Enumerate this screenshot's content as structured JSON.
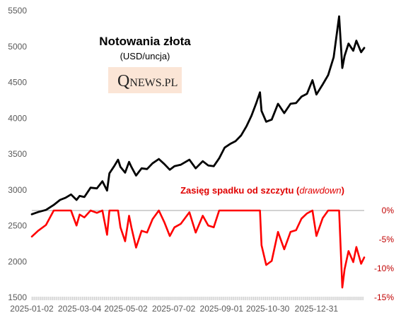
{
  "chart_data": {
    "type": "line",
    "title": "Notowania złota",
    "subtitle": "(USD/uncja)",
    "logo": "QNEWS.PL",
    "annotation": {
      "prefix": "Zasięg spadku od szczytu (",
      "emphasis": "drawdown",
      "suffix": ")"
    },
    "x_ticks": [
      "2025-01-02",
      "2025-03-04",
      "2025-05-02",
      "2025-07-02",
      "2025-09-01",
      "2025-10-30",
      "2025-12-31"
    ],
    "y_left": {
      "min": 1500,
      "max": 5500,
      "ticks": [
        "1500",
        "2000",
        "2500",
        "3000",
        "3500",
        "4000",
        "4500",
        "5000",
        "5500"
      ]
    },
    "y_right": {
      "min": -15,
      "max": 0,
      "ticks": [
        "0%",
        "-5%",
        "-10%",
        "-15%"
      ]
    },
    "colors": {
      "price": "#000000",
      "drawdown": "#ff0000",
      "zero_line": "#a6a6a6"
    },
    "series": [
      {
        "axis": "left",
        "points": [
          [
            "2025-01-02",
            2660
          ],
          [
            "2025-01-10",
            2690
          ],
          [
            "2025-01-20",
            2720
          ],
          [
            "2025-01-30",
            2790
          ],
          [
            "2025-02-07",
            2860
          ],
          [
            "2025-02-14",
            2890
          ],
          [
            "2025-02-21",
            2935
          ],
          [
            "2025-02-28",
            2860
          ],
          [
            "2025-03-04",
            2915
          ],
          [
            "2025-03-10",
            2900
          ],
          [
            "2025-03-18",
            3030
          ],
          [
            "2025-03-26",
            3020
          ],
          [
            "2025-04-02",
            3120
          ],
          [
            "2025-04-08",
            2990
          ],
          [
            "2025-04-11",
            3230
          ],
          [
            "2025-04-17",
            3330
          ],
          [
            "2025-04-22",
            3420
          ],
          [
            "2025-04-25",
            3320
          ],
          [
            "2025-05-01",
            3240
          ],
          [
            "2025-05-06",
            3390
          ],
          [
            "2025-05-09",
            3320
          ],
          [
            "2025-05-15",
            3200
          ],
          [
            "2025-05-22",
            3300
          ],
          [
            "2025-05-29",
            3290
          ],
          [
            "2025-06-05",
            3370
          ],
          [
            "2025-06-13",
            3430
          ],
          [
            "2025-06-20",
            3360
          ],
          [
            "2025-06-27",
            3280
          ],
          [
            "2025-07-03",
            3330
          ],
          [
            "2025-07-11",
            3350
          ],
          [
            "2025-07-22",
            3420
          ],
          [
            "2025-07-30",
            3300
          ],
          [
            "2025-08-08",
            3400
          ],
          [
            "2025-08-15",
            3340
          ],
          [
            "2025-08-22",
            3330
          ],
          [
            "2025-08-29",
            3440
          ],
          [
            "2025-09-05",
            3590
          ],
          [
            "2025-09-12",
            3640
          ],
          [
            "2025-09-19",
            3680
          ],
          [
            "2025-09-26",
            3760
          ],
          [
            "2025-10-03",
            3890
          ],
          [
            "2025-10-09",
            4030
          ],
          [
            "2025-10-15",
            4200
          ],
          [
            "2025-10-20",
            4360
          ],
          [
            "2025-10-22",
            4100
          ],
          [
            "2025-10-28",
            3950
          ],
          [
            "2025-11-04",
            3980
          ],
          [
            "2025-11-12",
            4200
          ],
          [
            "2025-11-20",
            4070
          ],
          [
            "2025-11-28",
            4200
          ],
          [
            "2025-12-05",
            4210
          ],
          [
            "2025-12-12",
            4300
          ],
          [
            "2025-12-19",
            4340
          ],
          [
            "2025-12-26",
            4530
          ],
          [
            "2025-12-31",
            4330
          ],
          [
            "2026-01-08",
            4470
          ],
          [
            "2026-01-15",
            4600
          ],
          [
            "2026-01-22",
            4850
          ],
          [
            "2026-01-29",
            5420
          ],
          [
            "2026-02-02",
            4700
          ],
          [
            "2026-02-05",
            4870
          ],
          [
            "2026-02-10",
            5040
          ],
          [
            "2026-02-16",
            4940
          ],
          [
            "2026-02-20",
            5080
          ],
          [
            "2026-02-26",
            4920
          ],
          [
            "2026-03-02",
            4980
          ]
        ]
      },
      {
        "axis": "right",
        "points": [
          [
            "2025-01-02",
            -4.5
          ],
          [
            "2025-01-10",
            -3.5
          ],
          [
            "2025-01-20",
            -2.5
          ],
          [
            "2025-01-30",
            0
          ],
          [
            "2025-02-07",
            0
          ],
          [
            "2025-02-14",
            0
          ],
          [
            "2025-02-21",
            0
          ],
          [
            "2025-02-28",
            -2.6
          ],
          [
            "2025-03-04",
            -0.7
          ],
          [
            "2025-03-10",
            -1.2
          ],
          [
            "2025-03-18",
            0
          ],
          [
            "2025-03-26",
            -0.4
          ],
          [
            "2025-04-02",
            0
          ],
          [
            "2025-04-08",
            -4.2
          ],
          [
            "2025-04-11",
            0
          ],
          [
            "2025-04-17",
            0
          ],
          [
            "2025-04-22",
            0
          ],
          [
            "2025-04-25",
            -2.9
          ],
          [
            "2025-05-01",
            -5.3
          ],
          [
            "2025-05-06",
            -0.9
          ],
          [
            "2025-05-09",
            -2.9
          ],
          [
            "2025-05-15",
            -6.4
          ],
          [
            "2025-05-22",
            -3.5
          ],
          [
            "2025-05-29",
            -3.8
          ],
          [
            "2025-06-05",
            -1.5
          ],
          [
            "2025-06-13",
            0
          ],
          [
            "2025-06-20",
            -2.0
          ],
          [
            "2025-06-27",
            -4.4
          ],
          [
            "2025-07-03",
            -2.9
          ],
          [
            "2025-07-11",
            -2.3
          ],
          [
            "2025-07-22",
            -0.3
          ],
          [
            "2025-07-30",
            -3.8
          ],
          [
            "2025-08-08",
            -0.9
          ],
          [
            "2025-08-15",
            -2.6
          ],
          [
            "2025-08-22",
            -2.9
          ],
          [
            "2025-08-29",
            0
          ],
          [
            "2025-09-05",
            0
          ],
          [
            "2025-09-12",
            0
          ],
          [
            "2025-09-19",
            0
          ],
          [
            "2025-09-26",
            0
          ],
          [
            "2025-10-03",
            0
          ],
          [
            "2025-10-09",
            0
          ],
          [
            "2025-10-15",
            0
          ],
          [
            "2025-10-20",
            0
          ],
          [
            "2025-10-22",
            -6.0
          ],
          [
            "2025-10-28",
            -9.4
          ],
          [
            "2025-11-04",
            -8.7
          ],
          [
            "2025-11-12",
            -3.7
          ],
          [
            "2025-11-20",
            -6.7
          ],
          [
            "2025-11-28",
            -3.7
          ],
          [
            "2025-12-05",
            -3.4
          ],
          [
            "2025-12-12",
            -1.4
          ],
          [
            "2025-12-19",
            -0.5
          ],
          [
            "2025-12-26",
            0
          ],
          [
            "2025-12-31",
            -4.4
          ],
          [
            "2026-01-08",
            -1.3
          ],
          [
            "2026-01-15",
            0
          ],
          [
            "2026-01-22",
            0
          ],
          [
            "2026-01-29",
            0
          ],
          [
            "2026-02-02",
            -13.3
          ],
          [
            "2026-02-05",
            -10.1
          ],
          [
            "2026-02-10",
            -7.0
          ],
          [
            "2026-02-16",
            -8.9
          ],
          [
            "2026-02-20",
            -6.3
          ],
          [
            "2026-02-26",
            -9.2
          ],
          [
            "2026-03-02",
            -8.1
          ]
        ]
      }
    ]
  }
}
